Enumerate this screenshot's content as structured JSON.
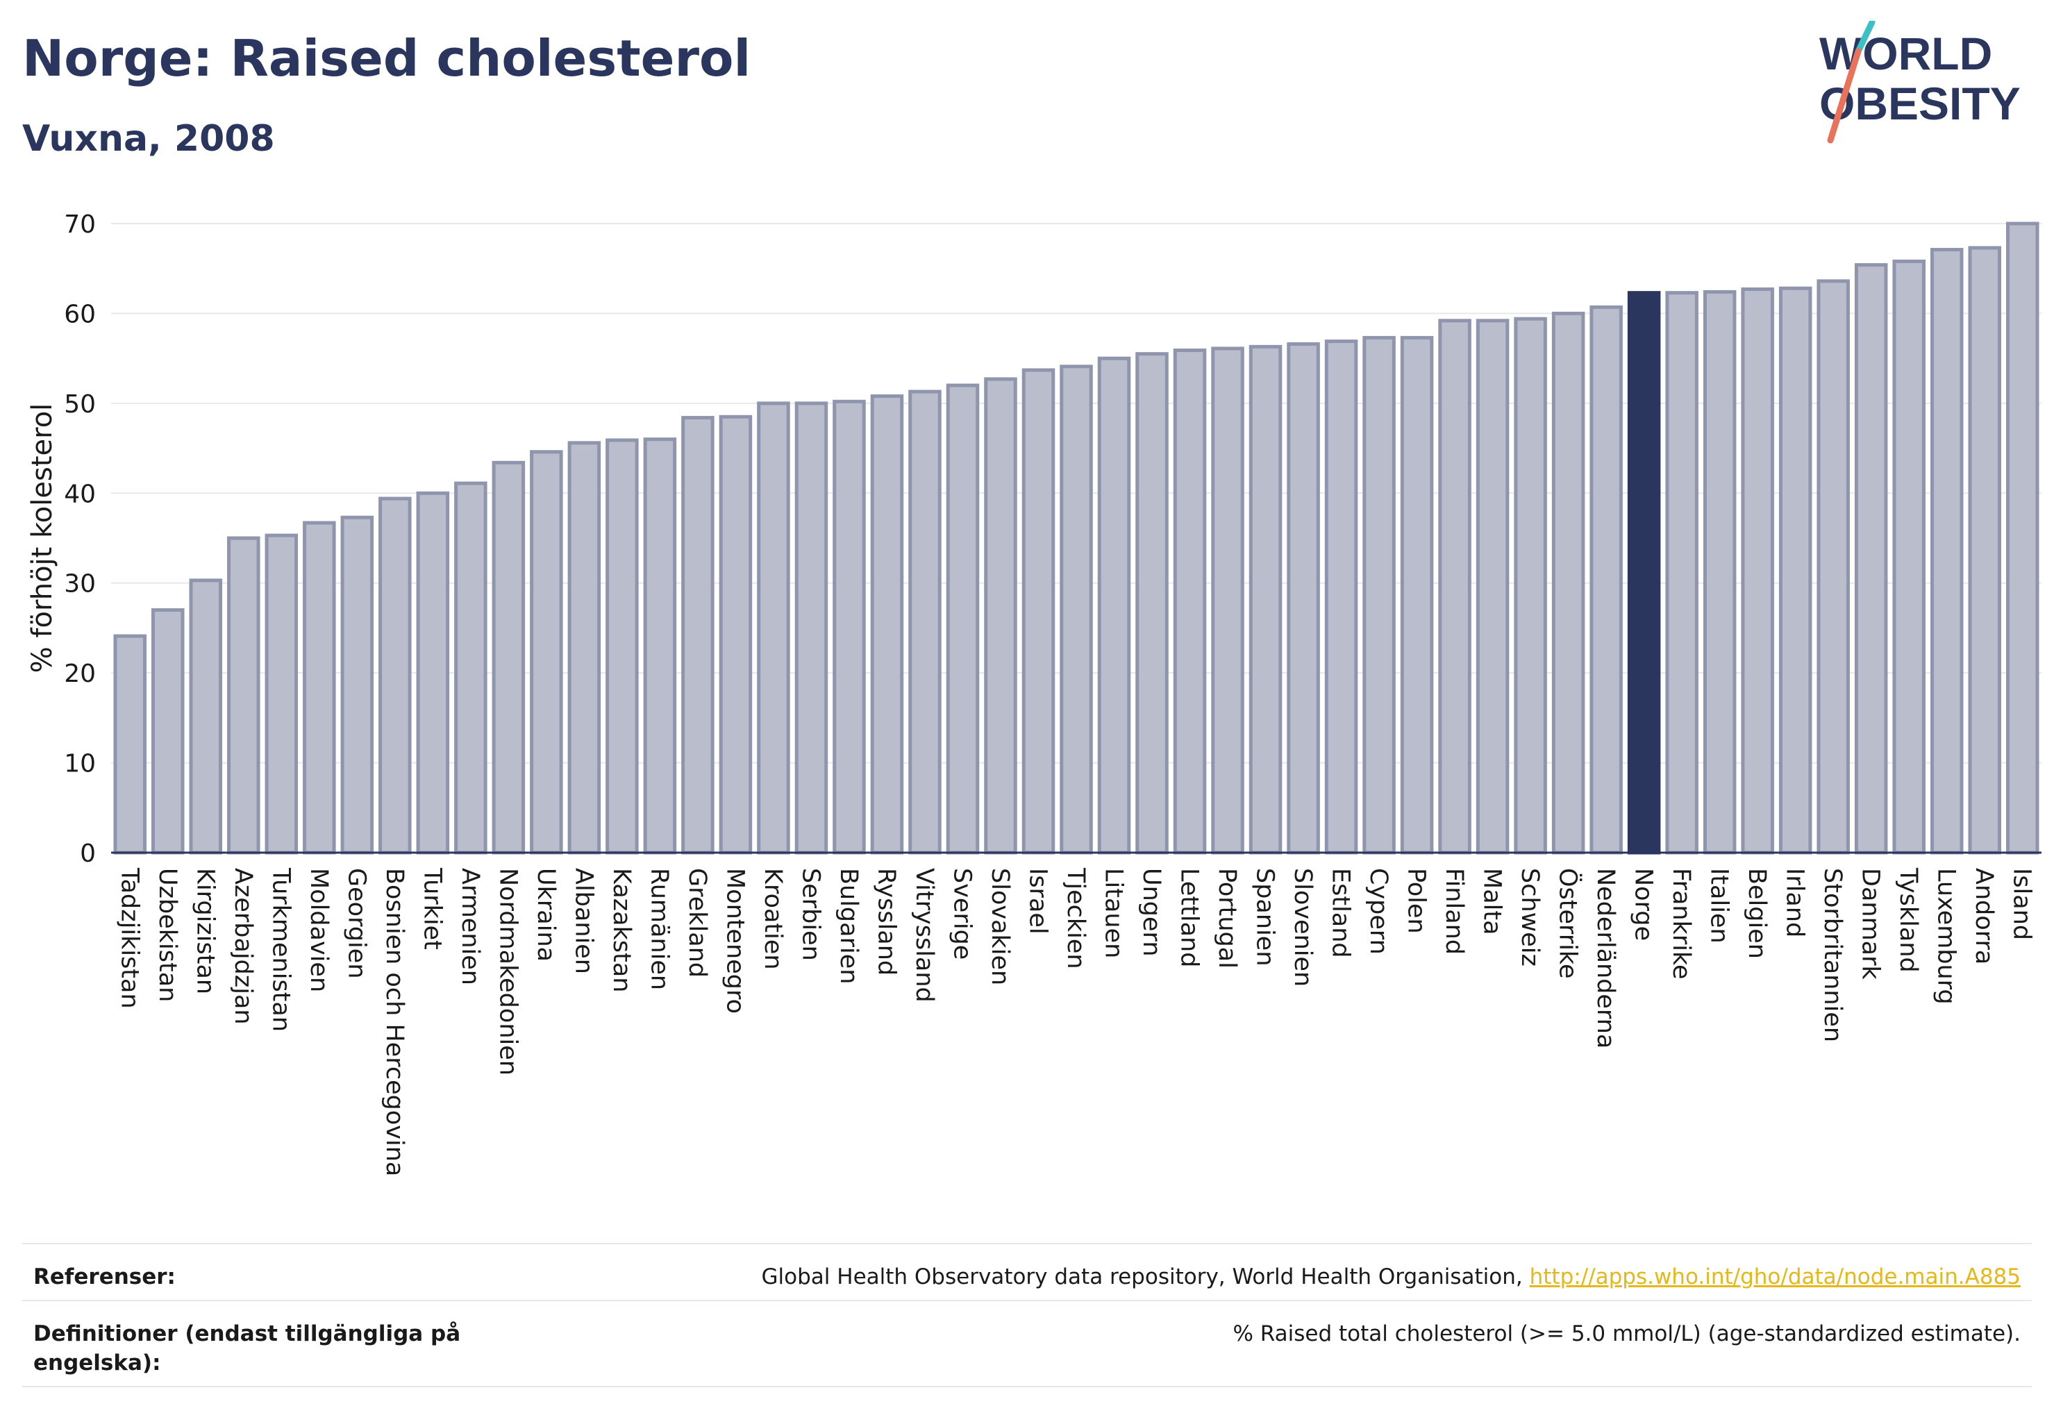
{
  "header": {
    "title": "Norge: Raised cholesterol",
    "subtitle": "Vuxna, 2008"
  },
  "logo": {
    "line1": "WORLD",
    "line2": "OBESITY",
    "accent_teal": "#3cc0c6",
    "accent_red": "#e8735a"
  },
  "colors": {
    "bar_fill": "#b9bdcc",
    "bar_stroke": "#8f95ad",
    "highlight": "#2b365e",
    "grid": "#e6e8ee"
  },
  "chart_data": {
    "type": "bar",
    "ylabel": "% förhöjt kolesterol",
    "ylim": [
      0,
      70
    ],
    "yticks": [
      0,
      10,
      20,
      30,
      40,
      50,
      60,
      70
    ],
    "grid": true,
    "highlight": "Norge",
    "categories": [
      "Tadzjikistan",
      "Uzbekistan",
      "Kirgizistan",
      "Azerbajdzjan",
      "Turkmenistan",
      "Moldavien",
      "Georgien",
      "Bosnien och Hercegovina",
      "Turkiet",
      "Armenien",
      "Nordmakedonien",
      "Ukraina",
      "Albanien",
      "Kazakstan",
      "Rumänien",
      "Grekland",
      "Montenegro",
      "Kroatien",
      "Serbien",
      "Bulgarien",
      "Ryssland",
      "Vitryssland",
      "Sverige",
      "Slovakien",
      "Israel",
      "Tjeckien",
      "Litauen",
      "Ungern",
      "Lettland",
      "Portugal",
      "Spanien",
      "Slovenien",
      "Estland",
      "Cypern",
      "Polen",
      "Finland",
      "Malta",
      "Schweiz",
      "Österrike",
      "Nederländerna",
      "Norge",
      "Frankrike",
      "Italien",
      "Belgien",
      "Irland",
      "Storbritannien",
      "Danmark",
      "Tyskland",
      "Luxemburg",
      "Andorra",
      "Island"
    ],
    "values": [
      24.1,
      27.0,
      30.3,
      35.0,
      35.3,
      36.7,
      37.3,
      39.4,
      40.0,
      41.1,
      43.4,
      44.6,
      45.6,
      45.9,
      46.0,
      48.4,
      48.5,
      50.0,
      50.0,
      50.2,
      50.8,
      51.3,
      52.0,
      52.7,
      53.7,
      54.1,
      55.0,
      55.5,
      55.9,
      56.1,
      56.3,
      56.6,
      56.9,
      57.3,
      57.3,
      59.2,
      59.2,
      59.4,
      60.0,
      60.7,
      62.3,
      62.3,
      62.4,
      62.7,
      62.8,
      63.6,
      65.4,
      65.8,
      67.1,
      67.3,
      70.0
    ]
  },
  "footer": {
    "ref_label": "Referenser:",
    "ref_text": "Global Health Observatory data repository, World Health Organisation, ",
    "ref_link": "http://apps.who.int/gho/data/node.main.A885",
    "def_label": "Definitioner (endast tillgängliga på engelska):",
    "def_text": "% Raised total cholesterol (>= 5.0 mmol/L) (age-standardized estimate)."
  }
}
